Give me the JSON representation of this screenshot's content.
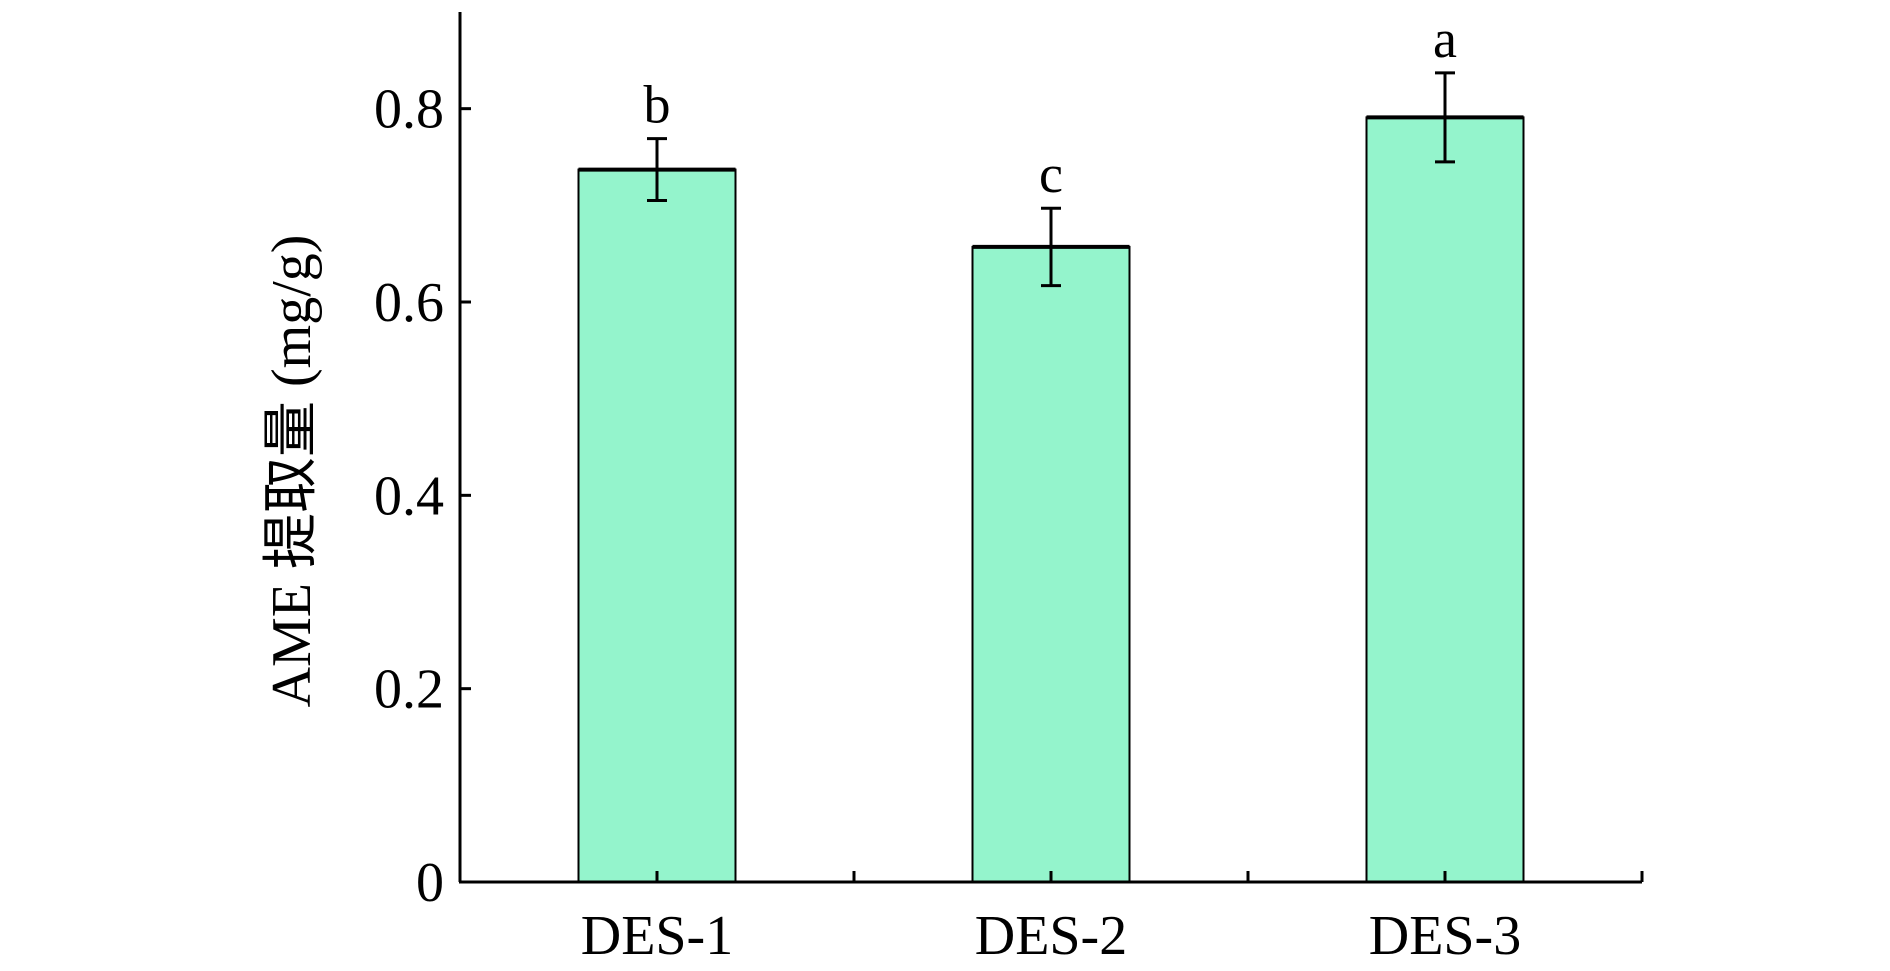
{
  "chart_data": {
    "type": "bar",
    "categories": [
      "DES-1",
      "DES-2",
      "DES-3"
    ],
    "values": [
      0.737,
      0.657,
      0.791
    ],
    "errors": [
      0.032,
      0.04,
      0.046
    ],
    "significance_labels": [
      "b",
      "c",
      "a"
    ],
    "title": "",
    "xlabel": "",
    "ylabel": "AME 提取量 (mg/g)",
    "ylim": [
      0,
      0.9
    ],
    "yticks": [
      0,
      0.2,
      0.4,
      0.6,
      0.8
    ],
    "ytick_labels": [
      "0",
      "0.2",
      "0.4",
      "0.6",
      "0.8"
    ],
    "grid": false,
    "legend": "none",
    "bar_color": "#94f4cc",
    "bar_edge_color": "#000000"
  }
}
